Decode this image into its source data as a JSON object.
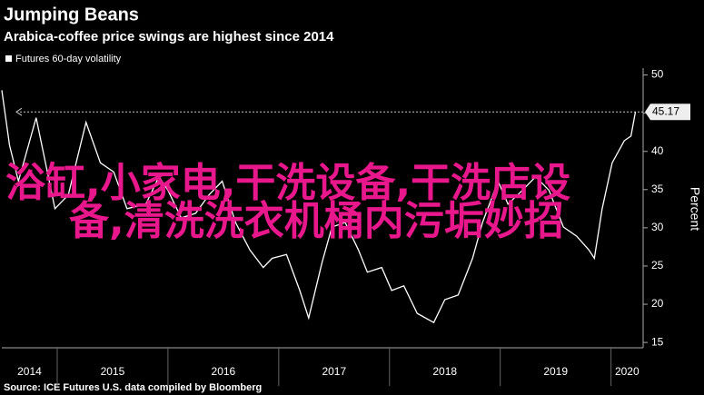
{
  "chart_data": {
    "type": "line",
    "title": "Jumping Beans",
    "subtitle": "Arabica-coffee price swings are highest since 2014",
    "y_axis_label": "Percent",
    "source": "Source: ICE Futures U.S. data compiled by Bloomberg",
    "overlay_text": [
      "浴缸,小家电,干洗设备,干洗店设",
      "备,清洗洗衣机桶内污垢妙招"
    ],
    "last_value": 45.17,
    "x": [
      2014.5,
      2014.57,
      2014.65,
      2014.81,
      2014.98,
      2015.1,
      2015.26,
      2015.39,
      2015.51,
      2015.63,
      2015.8,
      2015.92,
      2016.0,
      2016.12,
      2016.25,
      2016.37,
      2016.49,
      2016.61,
      2016.74,
      2016.86,
      2016.94,
      2017.07,
      2017.19,
      2017.27,
      2017.39,
      2017.48,
      2017.6,
      2017.72,
      2017.8,
      2017.93,
      2018.02,
      2018.13,
      2018.25,
      2018.4,
      2018.5,
      2018.62,
      2018.75,
      2018.84,
      2018.98,
      2019.07,
      2019.2,
      2019.32,
      2019.44,
      2019.57,
      2019.69,
      2019.8,
      2019.85,
      2019.92,
      2020.01,
      2020.12,
      2020.18,
      2020.22
    ],
    "series": [
      {
        "name": "Futures 60-day volatility",
        "color": "#ffffff",
        "values": [
          48.0,
          40.8,
          36.1,
          44.4,
          32.5,
          34.3,
          43.8,
          38.5,
          37.3,
          32.5,
          33.1,
          36.7,
          34.9,
          31.3,
          31.9,
          34.3,
          36.1,
          30.7,
          27.1,
          24.8,
          26.0,
          26.5,
          21.8,
          18.2,
          25.4,
          30.1,
          30.7,
          27.1,
          24.2,
          24.8,
          21.8,
          22.4,
          18.8,
          17.6,
          20.6,
          21.2,
          26.0,
          30.7,
          36.1,
          33.1,
          34.9,
          36.7,
          34.9,
          30.1,
          28.9,
          27.1,
          26.0,
          32.5,
          38.5,
          41.4,
          42.0,
          45.17
        ]
      }
    ],
    "xlim": [
      2014.5,
      2020.29
    ],
    "xticks": [
      2014,
      2015,
      2016,
      2017,
      2018,
      2019,
      2020
    ],
    "ylim": [
      14.3,
      50.9
    ],
    "yticks": [
      15,
      20,
      25,
      30,
      35,
      40,
      45,
      50
    ]
  }
}
